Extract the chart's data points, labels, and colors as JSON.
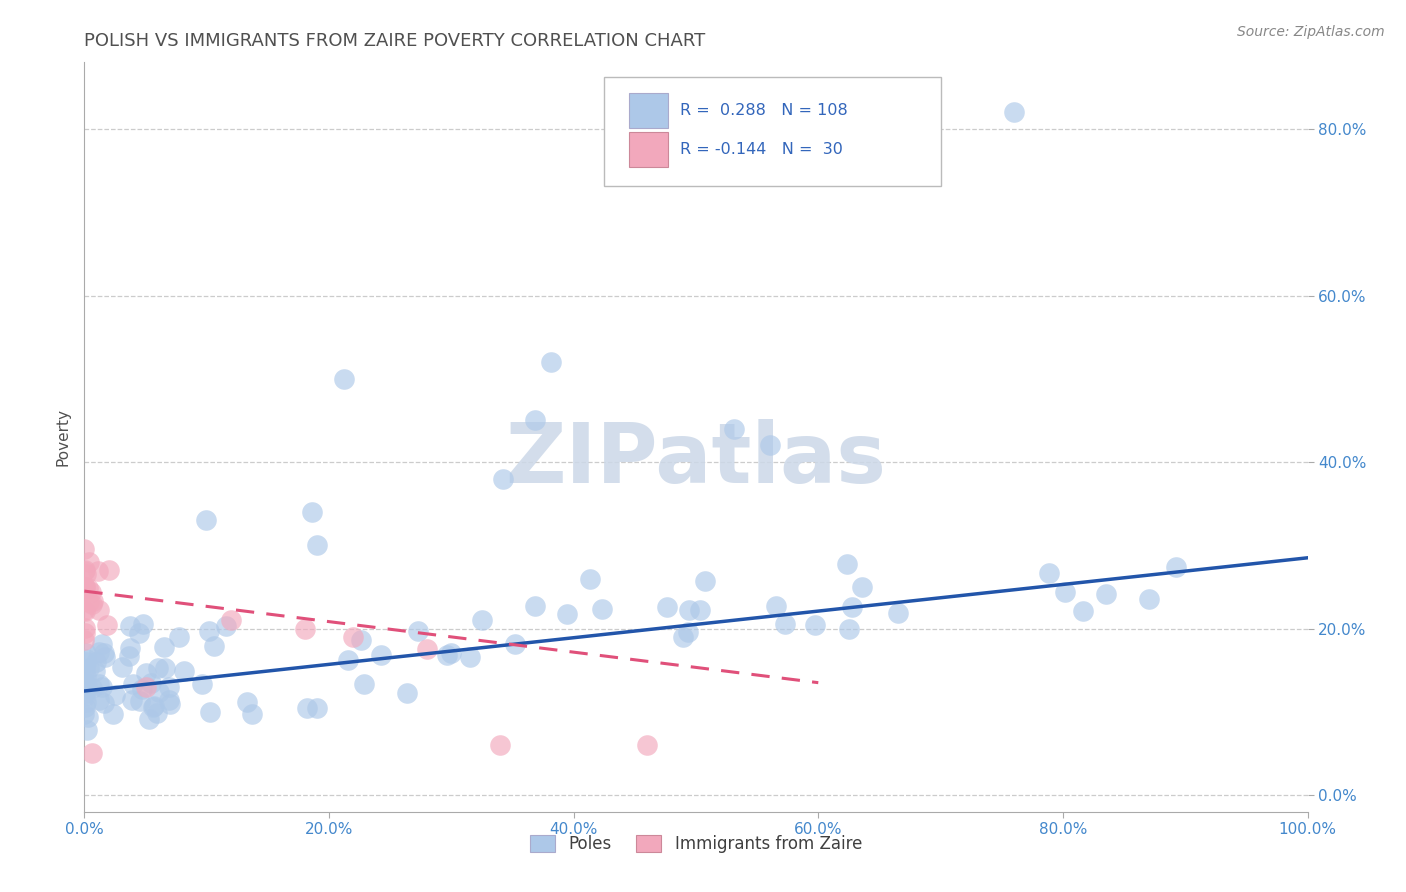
{
  "title": "POLISH VS IMMIGRANTS FROM ZAIRE POVERTY CORRELATION CHART",
  "source_text": "Source: ZipAtlas.com",
  "ylabel": "Poverty",
  "xlim": [
    0,
    1.0
  ],
  "ylim": [
    -0.02,
    0.88
  ],
  "xticks": [
    0.0,
    0.2,
    0.4,
    0.6,
    0.8,
    1.0
  ],
  "xtick_labels": [
    "0.0%",
    "20.0%",
    "40.0%",
    "60.0%",
    "80.0%",
    "100.0%"
  ],
  "ytick_vals": [
    0.0,
    0.2,
    0.4,
    0.6,
    0.8
  ],
  "ytick_labels": [
    "0.0%",
    "20.0%",
    "40.0%",
    "60.0%",
    "80.0%"
  ],
  "blue_color": "#adc8e8",
  "pink_color": "#f2a8bc",
  "blue_line_color": "#2255aa",
  "pink_line_color": "#e0507a",
  "legend_R_blue": "0.288",
  "legend_N_blue": "108",
  "legend_R_pink": "-0.144",
  "legend_N_pink": "30",
  "watermark": "ZIPatlas",
  "legend_label_poles": "Poles",
  "legend_label_zaire": "Immigrants from Zaire",
  "blue_trend_x": [
    0.0,
    1.0
  ],
  "blue_trend_y": [
    0.125,
    0.285
  ],
  "pink_trend_x": [
    0.0,
    0.6
  ],
  "pink_trend_y": [
    0.245,
    0.135
  ],
  "title_color": "#505050",
  "title_fontsize": 13,
  "axis_label_color": "#505050",
  "tick_label_color": "#4488cc",
  "ylabel_color": "#505050",
  "grid_color": "#cccccc",
  "watermark_color": "#ccd8e8",
  "source_color": "#888888"
}
